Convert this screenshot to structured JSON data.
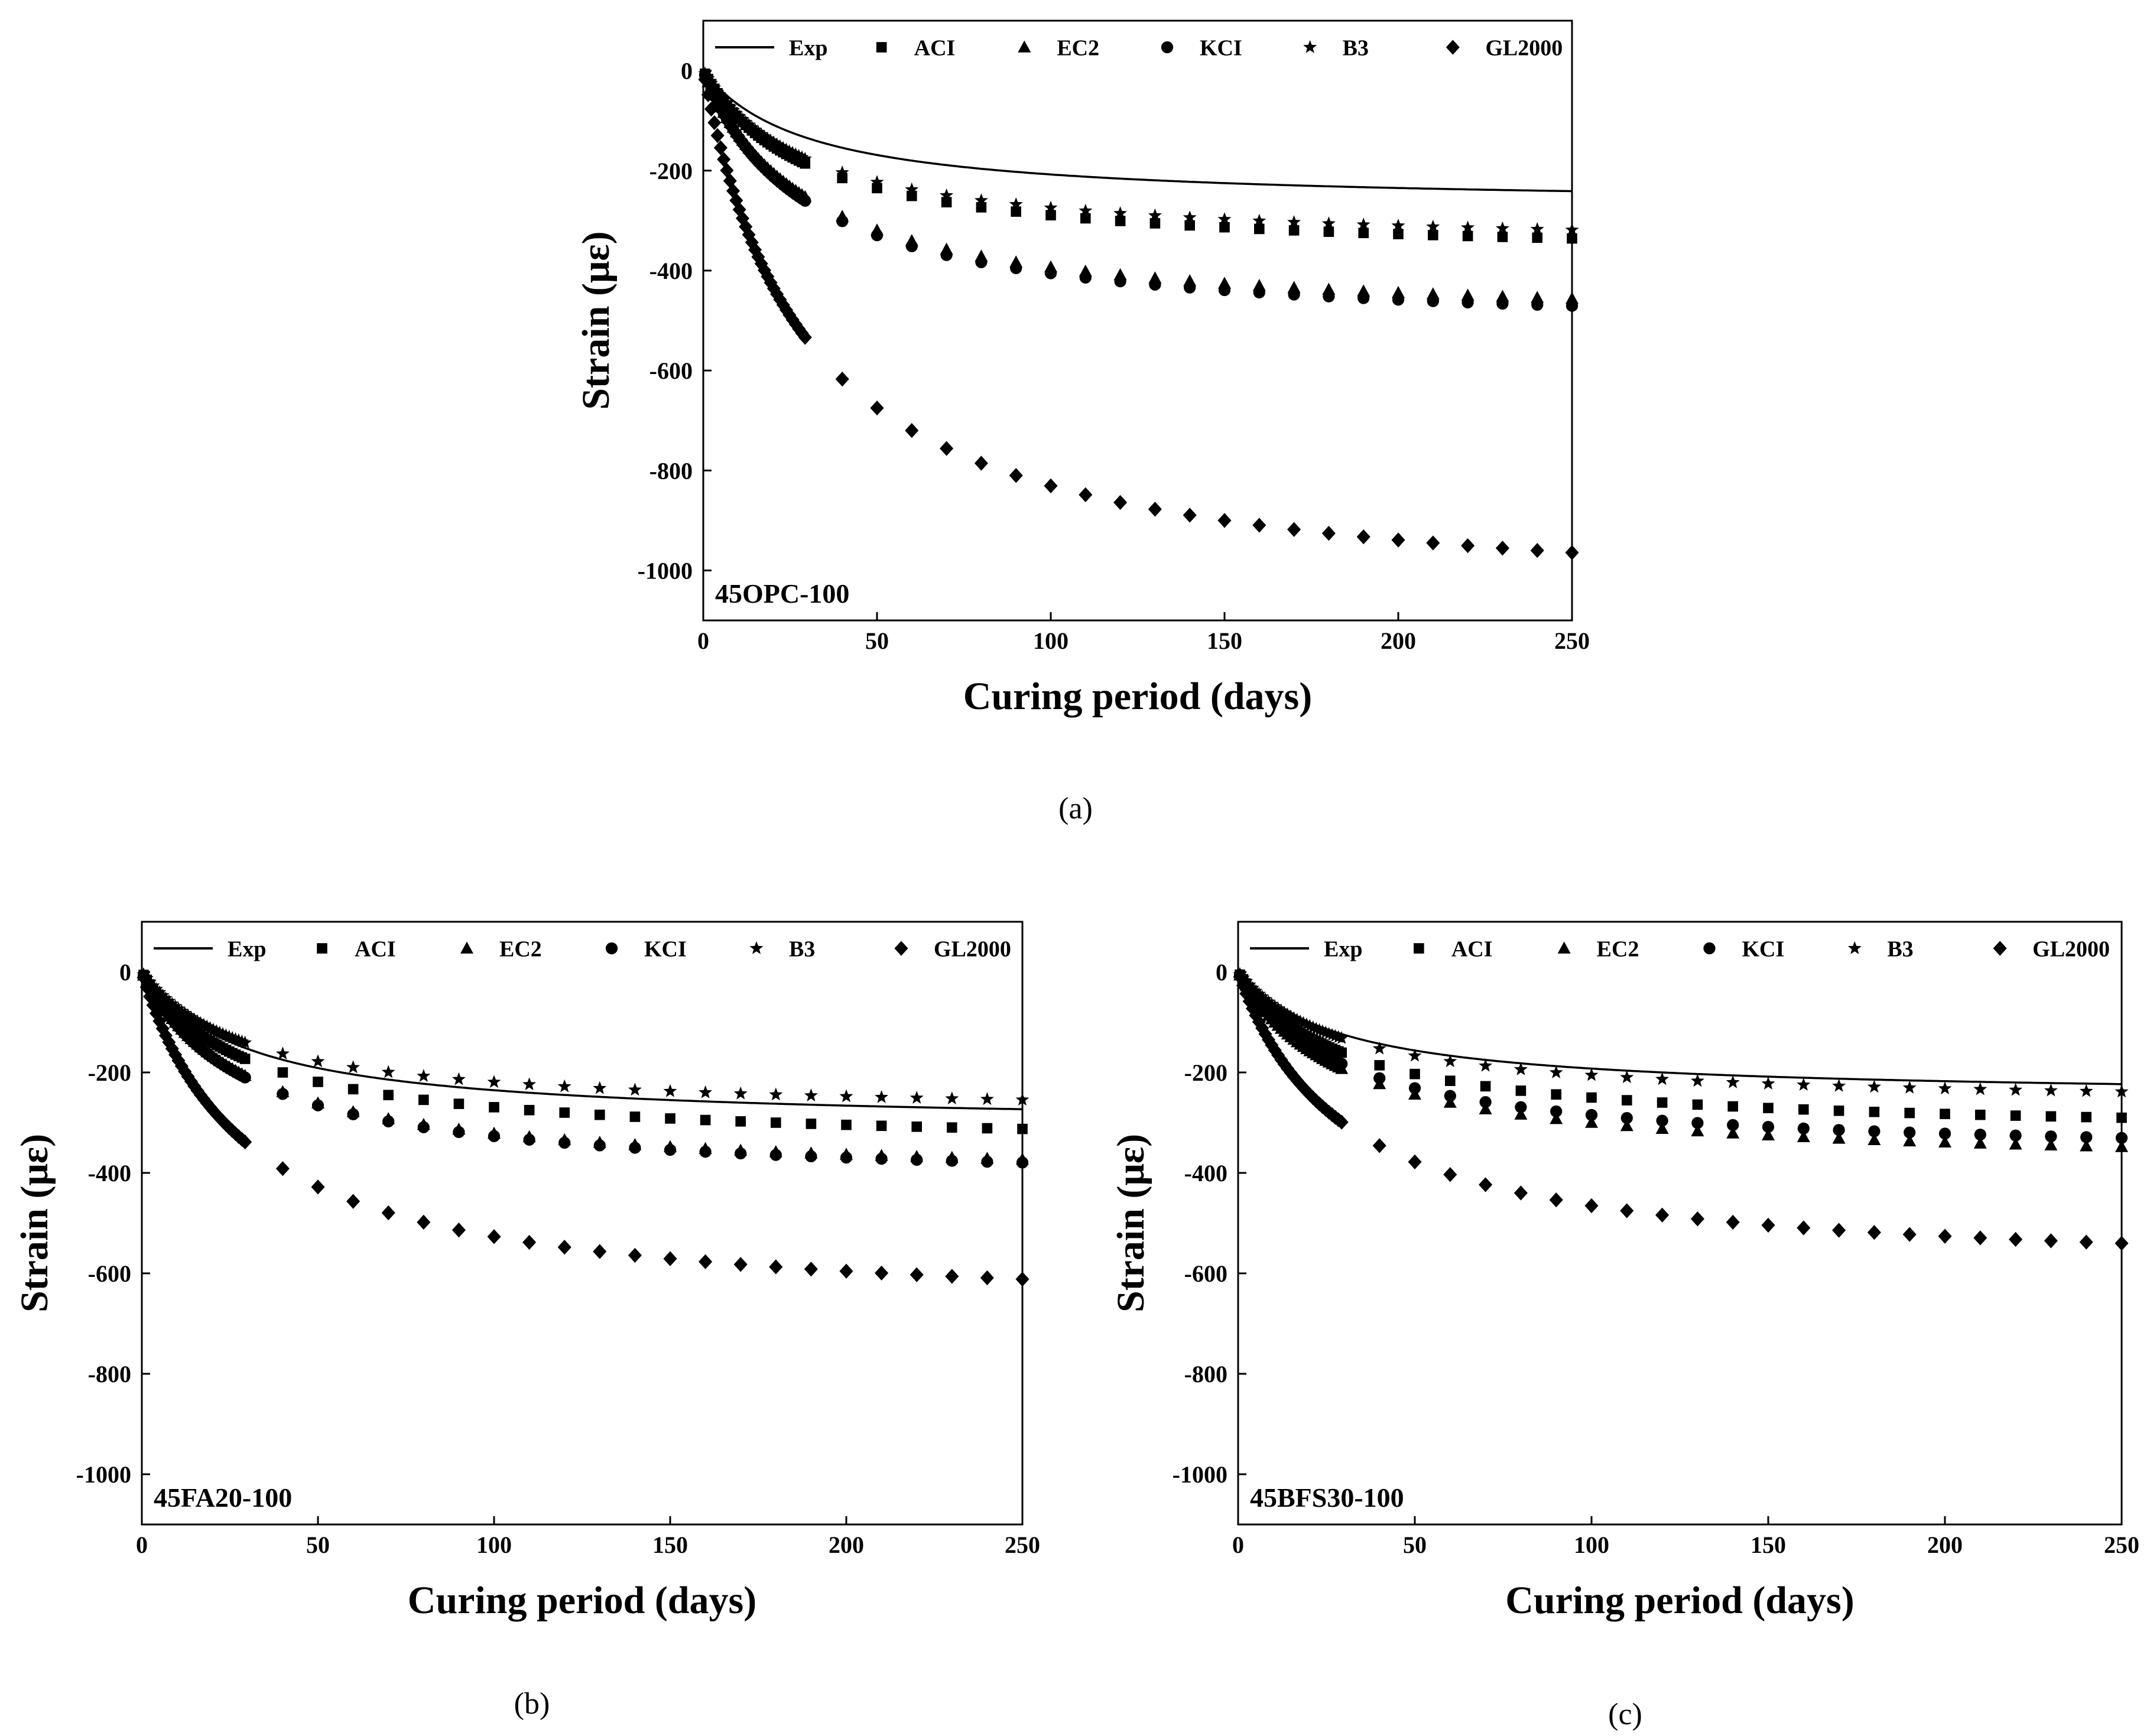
{
  "figure": {
    "captions": [
      "(a)",
      "(b)",
      "(c)"
    ]
  },
  "chart_data": [
    {
      "type": "line",
      "panel_label": "45OPC-100",
      "caption": "(a)",
      "xlabel": "Curing period (days)",
      "ylabel": "Strain (με)",
      "xlim": [
        0,
        250
      ],
      "ylim": [
        -1100,
        100
      ],
      "xticks": [
        0,
        50,
        100,
        150,
        200,
        250
      ],
      "yticks": [
        0,
        -200,
        -400,
        -600,
        -800,
        -1000
      ],
      "legend": [
        "Exp",
        "ACI",
        "EC2",
        "KCI",
        "B3",
        "GL2000"
      ],
      "legend_position": "top",
      "grid": false,
      "series": [
        {
          "name": "Exp",
          "marker": "line",
          "final": -270,
          "tau": 30
        },
        {
          "name": "ACI",
          "marker": "square",
          "final": -376,
          "tau": 30
        },
        {
          "name": "EC2",
          "marker": "triangle",
          "final": -511,
          "tau": 30
        },
        {
          "name": "KCI",
          "marker": "circle",
          "final": -527,
          "tau": 30
        },
        {
          "name": "B3",
          "marker": "star",
          "final": -357,
          "tau": 30
        },
        {
          "name": "GL2000",
          "marker": "diamond",
          "final": -1080,
          "tau": 30
        }
      ]
    },
    {
      "type": "line",
      "panel_label": "45FA20-100",
      "caption": "(b)",
      "xlabel": "Curing period (days)",
      "ylabel": "Strain (με)",
      "xlim": [
        0,
        250
      ],
      "ylim": [
        -1100,
        100
      ],
      "xticks": [
        0,
        50,
        100,
        150,
        200,
        250
      ],
      "yticks": [
        0,
        -200,
        -400,
        -600,
        -800,
        -1000
      ],
      "legend": [
        "Exp",
        "ACI",
        "EC2",
        "KCI",
        "B3",
        "GL2000"
      ],
      "legend_position": "top",
      "grid": false,
      "series": [
        {
          "name": "Exp",
          "marker": "line",
          "final": -306,
          "tau": 30
        },
        {
          "name": "ACI",
          "marker": "square",
          "final": -350,
          "tau": 30
        },
        {
          "name": "EC2",
          "marker": "triangle",
          "final": -418,
          "tau": 30
        },
        {
          "name": "KCI",
          "marker": "circle",
          "final": -425,
          "tau": 30
        },
        {
          "name": "B3",
          "marker": "star",
          "final": -285,
          "tau": 30
        },
        {
          "name": "GL2000",
          "marker": "diamond",
          "final": -685,
          "tau": 30
        }
      ]
    },
    {
      "type": "line",
      "panel_label": "45BFS30-100",
      "caption": "(c)",
      "xlabel": "Curing period (days)",
      "ylabel": "Strain (με)",
      "xlim": [
        0,
        250
      ],
      "ylim": [
        -1100,
        100
      ],
      "xticks": [
        0,
        50,
        100,
        150,
        200,
        250
      ],
      "yticks": [
        0,
        -200,
        -400,
        -600,
        -800,
        -1000
      ],
      "legend": [
        "Exp",
        "ACI",
        "EC2",
        "KCI",
        "B3",
        "GL2000"
      ],
      "legend_position": "top",
      "grid": false,
      "series": [
        {
          "name": "Exp",
          "marker": "line",
          "final": -250,
          "tau": 30
        },
        {
          "name": "ACI",
          "marker": "square",
          "final": -325,
          "tau": 30
        },
        {
          "name": "EC2",
          "marker": "triangle",
          "final": -390,
          "tau": 30
        },
        {
          "name": "KCI",
          "marker": "circle",
          "final": -370,
          "tau": 30
        },
        {
          "name": "B3",
          "marker": "star",
          "final": -267,
          "tau": 30
        },
        {
          "name": "GL2000",
          "marker": "diamond",
          "final": -605,
          "tau": 30
        }
      ]
    }
  ]
}
